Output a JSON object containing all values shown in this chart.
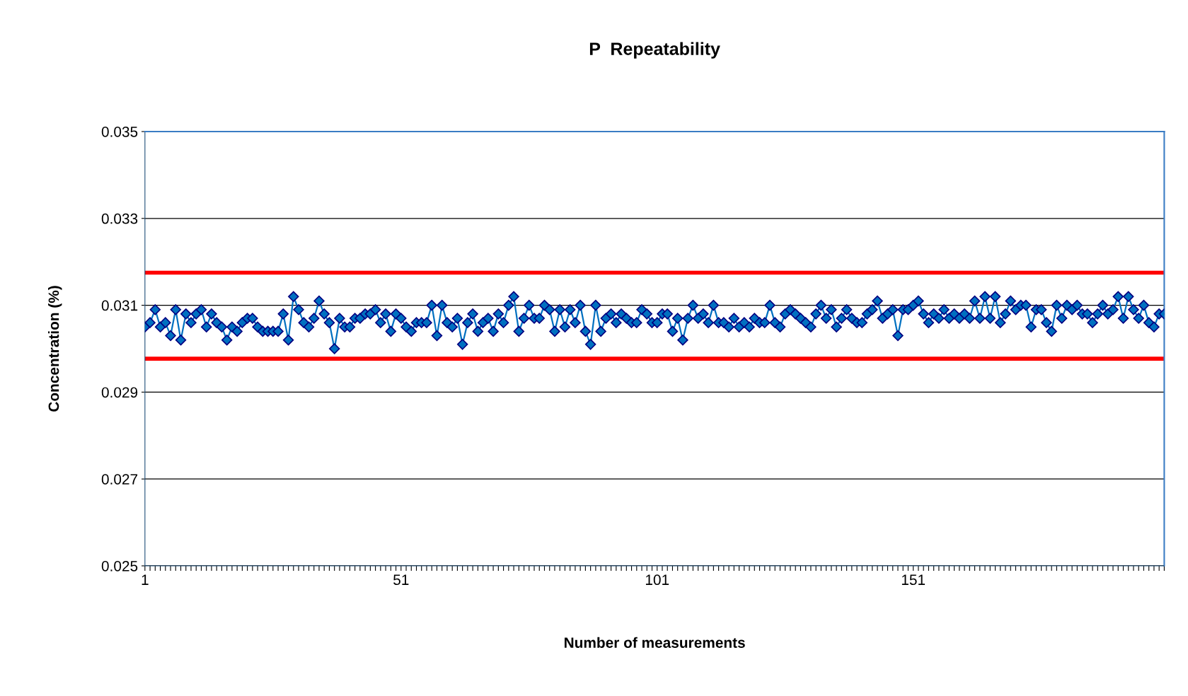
{
  "chart_data": {
    "type": "line",
    "title": "P  Repeatability",
    "xlabel": "Number of measurements",
    "ylabel": "Concentration (%)",
    "categories": [
      "1",
      null,
      null,
      null,
      null,
      null,
      null,
      null,
      null,
      null,
      null,
      null,
      null,
      null,
      null,
      null,
      null,
      null,
      null,
      null,
      null,
      null,
      null,
      null,
      null,
      null,
      null,
      null,
      null,
      null,
      null,
      null,
      null,
      null,
      null,
      null,
      null,
      null,
      null,
      null,
      null,
      null,
      null,
      null,
      null,
      null,
      null,
      null,
      null,
      null,
      "51",
      null,
      null,
      null,
      null,
      null,
      null,
      null,
      null,
      null,
      null,
      null,
      null,
      null,
      null,
      null,
      null,
      null,
      null,
      null,
      null,
      null,
      null,
      null,
      null,
      null,
      null,
      null,
      null,
      null,
      null,
      null,
      null,
      null,
      null,
      null,
      null,
      null,
      null,
      null,
      null,
      null,
      null,
      null,
      null,
      null,
      null,
      null,
      null,
      null,
      "101",
      null,
      null,
      null,
      null,
      null,
      null,
      null,
      null,
      null,
      null,
      null,
      null,
      null,
      null,
      null,
      null,
      null,
      null,
      null,
      null,
      null,
      null,
      null,
      null,
      null,
      null,
      null,
      null,
      null,
      null,
      null,
      null,
      null,
      null,
      null,
      null,
      null,
      null,
      null,
      null,
      null,
      null,
      null,
      null,
      null,
      null,
      null,
      null,
      null,
      "151",
      null,
      null,
      null,
      null,
      null,
      null,
      null,
      null,
      null,
      null,
      null,
      null,
      null,
      null,
      null,
      null,
      null,
      null,
      null,
      null,
      null,
      null,
      null,
      null,
      null,
      null,
      null,
      null,
      null,
      null,
      null,
      null,
      null,
      null,
      null,
      null,
      null,
      null,
      null,
      null,
      null,
      null,
      null,
      null,
      null,
      null,
      null,
      null,
      null
    ],
    "series": [
      {
        "color": "#0070c0",
        "values": [
          0.0305,
          0.0306,
          0.0309,
          0.0305,
          0.0306,
          0.0303,
          0.0309,
          0.0302,
          0.0308,
          0.0306,
          0.0308,
          0.0309,
          0.0305,
          0.0308,
          0.0306,
          0.0305,
          0.0302,
          0.0305,
          0.0304,
          0.0306,
          0.0307,
          0.0307,
          0.0305,
          0.0304,
          0.0304,
          0.0304,
          0.0304,
          0.0308,
          0.0302,
          0.0312,
          0.0309,
          0.0306,
          0.0305,
          0.0307,
          0.0311,
          0.0308,
          0.0306,
          0.03,
          0.0307,
          0.0305,
          0.0305,
          0.0307,
          0.0307,
          0.0308,
          0.0308,
          0.0309,
          0.0306,
          0.0308,
          0.0304,
          0.0308,
          0.0307,
          0.0305,
          0.0304,
          0.0306,
          0.0306,
          0.0306,
          0.031,
          0.0303,
          0.031,
          0.0306,
          0.0305,
          0.0307,
          0.0301,
          0.0306,
          0.0308,
          0.0304,
          0.0306,
          0.0307,
          0.0304,
          0.0308,
          0.0306,
          0.031,
          0.0312,
          0.0304,
          0.0307,
          0.031,
          0.0307,
          0.0307,
          0.031,
          0.0309,
          0.0304,
          0.0309,
          0.0305,
          0.0309,
          0.0306,
          0.031,
          0.0304,
          0.0301,
          0.031,
          0.0304,
          0.0307,
          0.0308,
          0.0306,
          0.0308,
          0.0307,
          0.0306,
          0.0306,
          0.0309,
          0.0308,
          0.0306,
          0.0306,
          0.0308,
          0.0308,
          0.0304,
          0.0307,
          0.0302,
          0.0307,
          0.031,
          0.0307,
          0.0308,
          0.0306,
          0.031,
          0.0306,
          0.0306,
          0.0305,
          0.0307,
          0.0305,
          0.0306,
          0.0305,
          0.0307,
          0.0306,
          0.0306,
          0.031,
          0.0306,
          0.0305,
          0.0308,
          0.0309,
          0.0308,
          0.0307,
          0.0306,
          0.0305,
          0.0308,
          0.031,
          0.0307,
          0.0309,
          0.0305,
          0.0307,
          0.0309,
          0.0307,
          0.0306,
          0.0306,
          0.0308,
          0.0309,
          0.0311,
          0.0307,
          0.0308,
          0.0309,
          0.0303,
          0.0309,
          0.0309,
          0.031,
          0.0311,
          0.0308,
          0.0306,
          0.0308,
          0.0307,
          0.0309,
          0.0307,
          0.0308,
          0.0307,
          0.0308,
          0.0307,
          0.0311,
          0.0307,
          0.0312,
          0.0307,
          0.0312,
          0.0306,
          0.0308,
          0.0311,
          0.0309,
          0.031,
          0.031,
          0.0305,
          0.0309,
          0.0309,
          0.0306,
          0.0304,
          0.031,
          0.0307,
          0.031,
          0.0309,
          0.031,
          0.0308,
          0.0308,
          0.0306,
          0.0308,
          0.031,
          0.0308,
          0.0309,
          0.0312,
          0.0307,
          0.0312,
          0.0309,
          0.0307,
          0.031,
          0.0306,
          0.0305,
          0.0308,
          0.0308
        ]
      }
    ],
    "ylim": [
      0.025,
      0.035
    ],
    "yticks": [
      0.025,
      0.027,
      0.029,
      0.031,
      0.033,
      0.035
    ],
    "ref_lines": [
      {
        "axis": "y",
        "value": 0.03175,
        "color": "#ff0000"
      },
      {
        "axis": "y",
        "value": 0.02977,
        "color": "#ff0000"
      }
    ],
    "grid": "y",
    "marker": "diamond",
    "line_style": "solid",
    "legend": false
  }
}
